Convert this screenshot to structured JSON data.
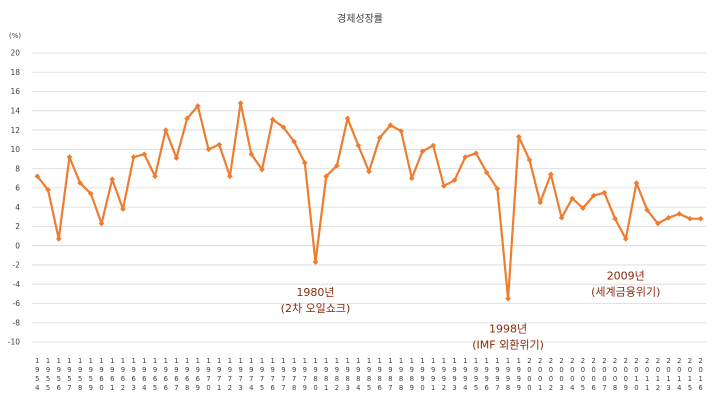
{
  "chart_data": {
    "type": "line",
    "title": "경제성장률",
    "yunit": "(%)",
    "ylim": [
      -10,
      20
    ],
    "ystep": 2,
    "grid": true,
    "legend": "none",
    "line_color": "#ed7d31",
    "x": [
      1954,
      1955,
      1956,
      1957,
      1958,
      1959,
      1960,
      1961,
      1962,
      1963,
      1964,
      1965,
      1966,
      1967,
      1968,
      1969,
      1970,
      1971,
      1972,
      1973,
      1974,
      1975,
      1976,
      1977,
      1978,
      1979,
      1980,
      1981,
      1982,
      1983,
      1984,
      1985,
      1986,
      1987,
      1988,
      1989,
      1990,
      1991,
      1992,
      1993,
      1994,
      1995,
      1996,
      1997,
      1998,
      1999,
      2000,
      2001,
      2002,
      2003,
      2004,
      2005,
      2006,
      2007,
      2008,
      2009,
      2010,
      2011,
      2012,
      2013,
      2014,
      2015,
      2016
    ],
    "values": [
      7.2,
      5.8,
      0.7,
      9.2,
      6.5,
      5.4,
      2.3,
      6.9,
      3.8,
      9.2,
      9.5,
      7.2,
      12.0,
      9.1,
      13.2,
      14.5,
      10.0,
      10.5,
      7.2,
      14.8,
      9.5,
      7.9,
      13.1,
      12.3,
      10.8,
      8.6,
      -1.7,
      7.2,
      8.3,
      13.2,
      10.4,
      7.7,
      11.2,
      12.5,
      11.9,
      7.0,
      9.8,
      10.4,
      6.2,
      6.8,
      9.2,
      9.6,
      7.6,
      5.9,
      -5.5,
      11.3,
      8.9,
      4.5,
      7.4,
      2.9,
      4.9,
      3.9,
      5.2,
      5.5,
      2.8,
      0.7,
      6.5,
      3.7,
      2.3,
      2.9,
      3.3,
      2.8,
      2.8
    ],
    "annotations": [
      {
        "x": 1980,
        "lines": [
          "1980년",
          "(2차 오일쇼크)"
        ]
      },
      {
        "x": 1998,
        "lines": [
          "1998년",
          "(IMF 외환위기)"
        ]
      },
      {
        "x": 2009,
        "lines": [
          "2009년",
          "(세계금융위기)"
        ]
      }
    ]
  }
}
